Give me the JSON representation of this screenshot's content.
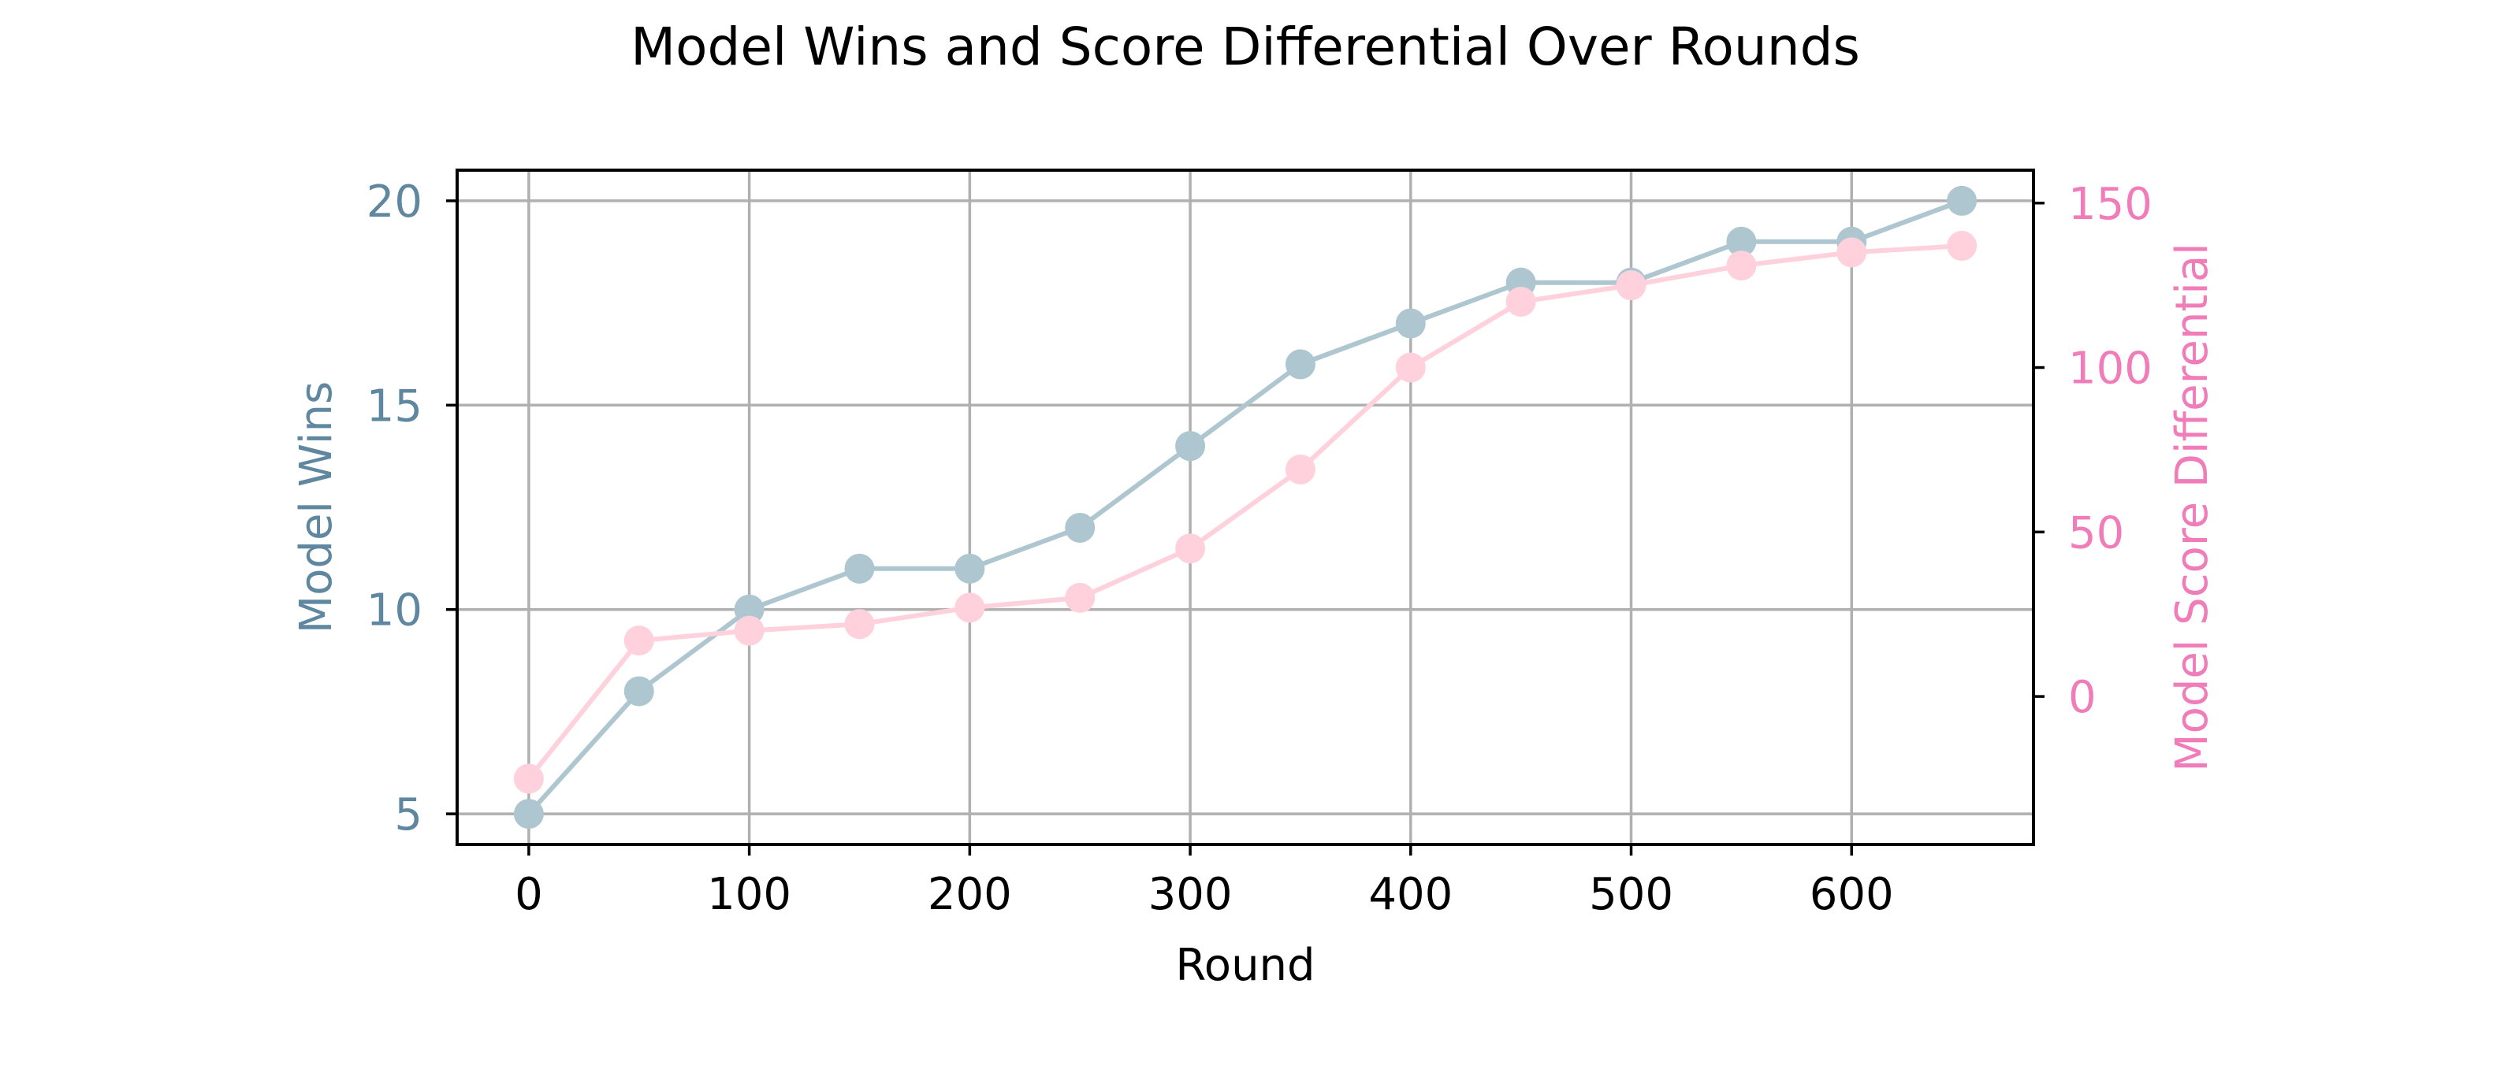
{
  "chart_data": {
    "type": "line",
    "title": "Model Wins and Score Differential Over Rounds",
    "xlabel": "Round",
    "ylabel_left": "Model Wins",
    "ylabel_right": "Model Score Differential",
    "x": [
      0,
      50,
      100,
      150,
      200,
      250,
      300,
      350,
      400,
      450,
      500,
      550,
      600,
      650
    ],
    "xlim": [
      -32.5,
      682.5
    ],
    "xticks": [
      0,
      100,
      200,
      300,
      400,
      500,
      600
    ],
    "ylim_left": [
      4.25,
      20.75
    ],
    "yticks_left": [
      5,
      10,
      15,
      20
    ],
    "ylim_right": [
      -45,
      160
    ],
    "yticks_right": [
      0,
      50,
      100,
      150
    ],
    "grid": true,
    "series": [
      {
        "axis": "left",
        "color": "#aec6cf",
        "marker": "circle",
        "values": [
          5,
          8,
          10,
          11,
          11,
          12,
          14,
          16,
          17,
          18,
          18,
          19,
          19,
          20
        ]
      },
      {
        "axis": "right",
        "color": "#ffd1dc",
        "marker": "circle",
        "values": [
          -25,
          17,
          20,
          22,
          27,
          30,
          45,
          69,
          100,
          120,
          125,
          131,
          135,
          137
        ]
      }
    ],
    "left_axis_color": "#5f87a0",
    "right_axis_color": "#f07cba"
  }
}
